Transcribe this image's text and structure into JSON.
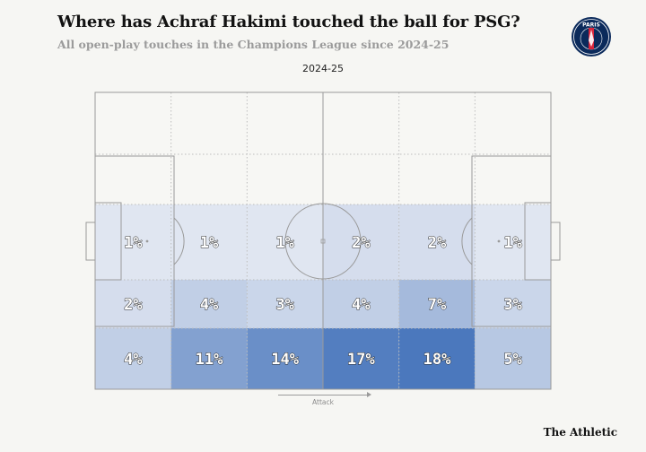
{
  "title": "Where has Achraf Hakimi touched the ball for PSG?",
  "subtitle": "All open-play touches in the Champions League since 2024-25",
  "season": "2024-25",
  "direction_label": "Attack",
  "brand": "The Athletic",
  "badge": {
    "icon": "psg-crest-icon",
    "text": "PARIS"
  },
  "colors": {
    "low": "#eef0f6",
    "high": "#4b78bd",
    "pitch_line": "#9a9a9a",
    "background": "#f6f6f3"
  },
  "chart_data": {
    "type": "heatmap",
    "title": "2024-25",
    "direction": "Attack",
    "columns": 6,
    "rows_drawn": 3,
    "unit": "% of touches",
    "cells": [
      {
        "row": 0,
        "col": 0,
        "value": 1,
        "label": "1%"
      },
      {
        "row": 0,
        "col": 1,
        "value": 1,
        "label": "1%"
      },
      {
        "row": 0,
        "col": 2,
        "value": 1,
        "label": "1%"
      },
      {
        "row": 0,
        "col": 3,
        "value": 2,
        "label": "2%"
      },
      {
        "row": 0,
        "col": 4,
        "value": 2,
        "label": "2%"
      },
      {
        "row": 0,
        "col": 5,
        "value": 1,
        "label": "1%"
      },
      {
        "row": 1,
        "col": 0,
        "value": 2,
        "label": "2%"
      },
      {
        "row": 1,
        "col": 1,
        "value": 4,
        "label": "4%"
      },
      {
        "row": 1,
        "col": 2,
        "value": 3,
        "label": "3%"
      },
      {
        "row": 1,
        "col": 3,
        "value": 4,
        "label": "4%"
      },
      {
        "row": 1,
        "col": 4,
        "value": 7,
        "label": "7%"
      },
      {
        "row": 1,
        "col": 5,
        "value": 3,
        "label": "3%"
      },
      {
        "row": 2,
        "col": 0,
        "value": 4,
        "label": "4%"
      },
      {
        "row": 2,
        "col": 1,
        "value": 11,
        "label": "11%"
      },
      {
        "row": 2,
        "col": 2,
        "value": 14,
        "label": "14%"
      },
      {
        "row": 2,
        "col": 3,
        "value": 17,
        "label": "17%"
      },
      {
        "row": 2,
        "col": 4,
        "value": 18,
        "label": "18%"
      },
      {
        "row": 2,
        "col": 5,
        "value": 5,
        "label": "5%"
      }
    ]
  }
}
